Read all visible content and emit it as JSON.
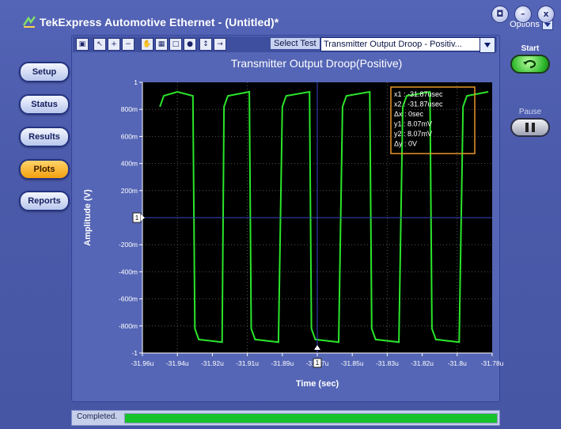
{
  "app": {
    "title": "TekExpress Automotive Ethernet  -  (Untitled)*",
    "options_label": "Options"
  },
  "window_buttons": [
    "camera-icon",
    "minimize-icon",
    "close-icon"
  ],
  "nav": {
    "items": [
      {
        "label": "Setup",
        "active": false
      },
      {
        "label": "Status",
        "active": false
      },
      {
        "label": "Results",
        "active": false
      },
      {
        "label": "Plots",
        "active": true
      },
      {
        "label": "Reports",
        "active": false
      }
    ]
  },
  "toolbar": {
    "tools": [
      "save-icon",
      "pointer-icon",
      "zoom-in-icon",
      "zoom-out-icon",
      "pan-hand-icon",
      "table-icon",
      "fit-icon",
      "color-icon",
      "cursor-icon",
      "export-icon"
    ],
    "select_test_label": "Select Test",
    "select_test_value": "Transmitter Output Droop - Positiv..."
  },
  "controls": {
    "start_label": "Start",
    "pause_label": "Pause"
  },
  "status": {
    "text": "Completed.",
    "progress": 1.0
  },
  "colors": {
    "plot_bg": "#000000",
    "trace": "#2be52b",
    "cursor_box": "#e8962a",
    "cursor_line": "#3a46c8",
    "grid": "#555555"
  },
  "chart_data": {
    "type": "line",
    "title": "Transmitter Output Droop(Positive)",
    "xlabel": "Time (sec)",
    "ylabel": "Amplitude (V)",
    "x_ticks": [
      "-31.96u",
      "-31.94u",
      "-31.92u",
      "-31.91u",
      "-31.89u",
      "-31.87u",
      "-31.85u",
      "-31.83u",
      "-31.82u",
      "-31.8u",
      "-31.78u"
    ],
    "y_ticks": [
      "1",
      "800m",
      "600m",
      "400m",
      "200m",
      "0",
      "-200m",
      "-400m",
      "-600m",
      "-800m",
      "-1"
    ],
    "xlim_us": [
      -31.96,
      -31.78
    ],
    "ylim": [
      -1.0,
      1.0
    ],
    "grid": true,
    "series": [
      {
        "x_us": [
          -31.951,
          -31.949,
          -31.942,
          -31.934,
          -31.933,
          -31.931,
          -31.919,
          -31.918,
          -31.916,
          -31.905,
          -31.904,
          -31.902,
          -31.89,
          -31.888,
          -31.886,
          -31.874,
          -31.873,
          -31.871,
          -31.859,
          -31.857,
          -31.855,
          -31.843,
          -31.842,
          -31.84,
          -31.828,
          -31.826,
          -31.824,
          -31.812,
          -31.811,
          -31.809,
          -31.797,
          -31.795,
          -31.793,
          -31.782
        ],
        "y": [
          0.82,
          0.9,
          0.93,
          0.9,
          -0.82,
          -0.9,
          -0.92,
          0.82,
          0.9,
          0.93,
          -0.82,
          -0.9,
          -0.92,
          0.82,
          0.9,
          0.93,
          -0.82,
          -0.9,
          -0.92,
          0.82,
          0.9,
          0.93,
          -0.82,
          -0.9,
          -0.92,
          0.82,
          0.9,
          0.93,
          -0.82,
          -0.9,
          -0.92,
          0.82,
          0.9,
          0.93
        ]
      }
    ],
    "cursor": {
      "marker_label": "1",
      "x_label": "-31.87u",
      "readout": [
        "x1 : -31.87usec",
        "x2 : -31.87usec",
        "Δx : 0sec",
        "y1 : 8.07mV",
        "y2 : 8.07mV",
        "Δy : 0V"
      ]
    }
  }
}
